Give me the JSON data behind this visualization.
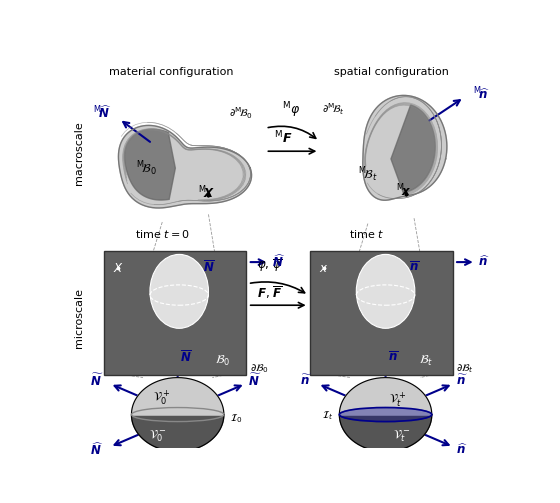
{
  "title_left": "material configuration",
  "title_right": "spatial configuration",
  "label_macroscale": "macroscale",
  "label_microscale": "microscale",
  "bg_color": "#ffffff",
  "dark_gray": "#555555",
  "body_dark": "#666666",
  "body_medium": "#aaaaaa",
  "body_light": "#cccccc",
  "body_lighter": "#e0e0e0",
  "blue_arrow": "#00008B",
  "grid_color": "#888888",
  "sq_dark": "#606060"
}
